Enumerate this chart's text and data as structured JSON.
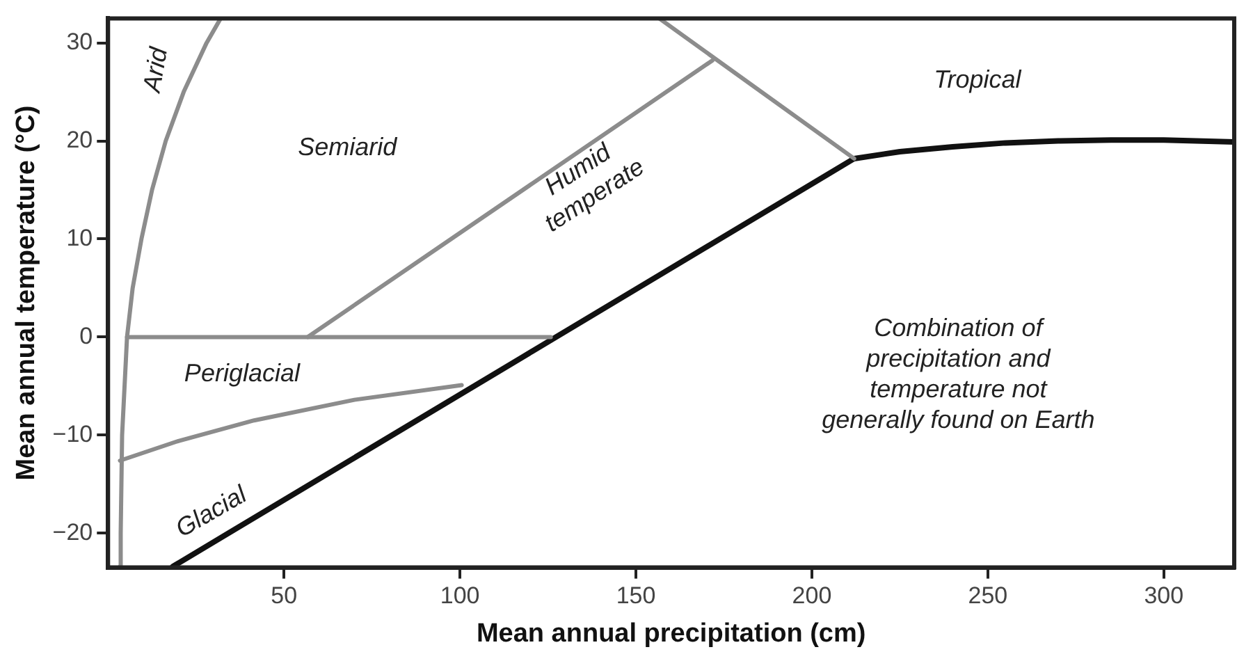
{
  "chart_data": {
    "type": "line",
    "xlabel": "Mean annual precipitation (cm)",
    "ylabel": "Mean annual temperature (°C)",
    "xlim": [
      0,
      320
    ],
    "ylim": [
      -23.5,
      32.5
    ],
    "xticks": [
      50,
      100,
      150,
      200,
      250,
      300
    ],
    "yticks": [
      -20,
      -10,
      0,
      10,
      20,
      30
    ],
    "grid": false,
    "legend": false,
    "marker": "none",
    "line_style": "solid",
    "series": [
      {
        "color": "#8c8c8c",
        "x": [
          3.4,
          3.6,
          4,
          5.4,
          7,
          9.5,
          12.5,
          16.4,
          21.5,
          28,
          32
        ],
        "values": [
          -23.4,
          -20,
          -10,
          0,
          5,
          10,
          15,
          20,
          25,
          30,
          32.5
        ]
      },
      {
        "color": "#8c8c8c",
        "x": [
          3.4,
          20,
          41.5,
          70,
          100.5
        ],
        "values": [
          -12.6,
          -10.6,
          -8.5,
          -6.4,
          -4.9
        ]
      },
      {
        "color": "#8c8c8c",
        "x": [
          5.4,
          125.8
        ],
        "values": [
          0,
          0
        ]
      },
      {
        "color": "#8c8c8c",
        "x": [
          56.7,
          171.7
        ],
        "values": [
          0,
          28.2
        ]
      },
      {
        "color": "#8c8c8c",
        "x": [
          156.6,
          212
        ],
        "values": [
          32.5,
          18.2
        ]
      },
      {
        "color": "#111111",
        "x": [
          18.4,
          212,
          225,
          240,
          255,
          270,
          285,
          300,
          320
        ],
        "values": [
          -23.4,
          18.2,
          18.9,
          19.4,
          19.8,
          20,
          20.1,
          20.1,
          19.9
        ]
      }
    ],
    "annotations": [
      "Arid",
      "Semiarid",
      "Humid temperate",
      "Tropical",
      "Periglacial",
      "Glacial",
      "Combination of precipitation and temperature not generally found on Earth"
    ]
  }
}
